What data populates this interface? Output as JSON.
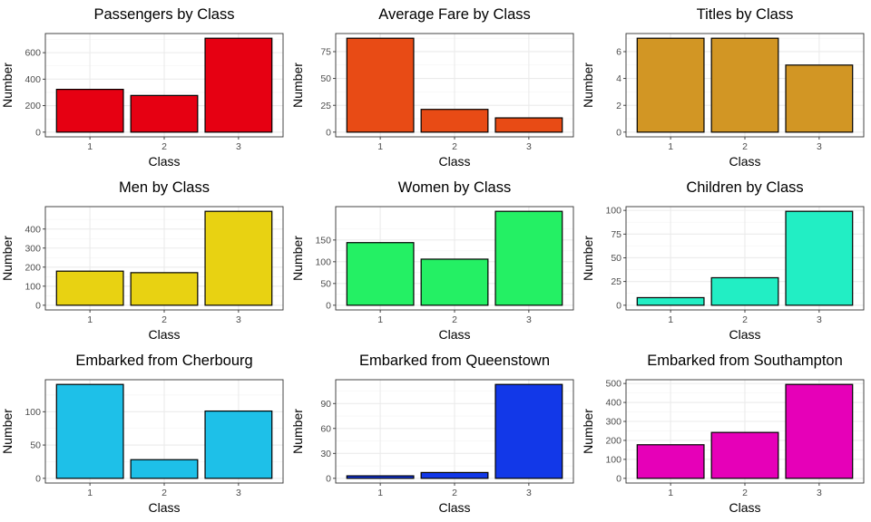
{
  "chart_data": [
    {
      "type": "bar",
      "title": "Passengers by Class",
      "xlabel": "Class",
      "ylabel": "Number",
      "categories": [
        "1",
        "2",
        "3"
      ],
      "values": [
        323,
        277,
        709
      ],
      "ylim": [
        -35.45,
        744.45
      ],
      "yticks": [
        0,
        200,
        400,
        600
      ],
      "color": "#E60012"
    },
    {
      "type": "bar",
      "title": "Average Fare by Class",
      "xlabel": "Class",
      "ylabel": "Number",
      "categories": [
        "1",
        "2",
        "3"
      ],
      "values": [
        87.5,
        21.2,
        13.3
      ],
      "ylim": [
        -4.375,
        91.875
      ],
      "yticks": [
        0,
        25,
        50,
        75
      ],
      "color": "#E84B15"
    },
    {
      "type": "bar",
      "title": "Titles by Class",
      "xlabel": "Class",
      "ylabel": "Number",
      "categories": [
        "1",
        "2",
        "3"
      ],
      "values": [
        7,
        7,
        5
      ],
      "ylim": [
        -0.35,
        7.35
      ],
      "yticks": [
        0,
        2,
        4,
        6
      ],
      "color": "#D29624"
    },
    {
      "type": "bar",
      "title": "Men by Class",
      "xlabel": "Class",
      "ylabel": "Number",
      "categories": [
        "1",
        "2",
        "3"
      ],
      "values": [
        179,
        171,
        493
      ],
      "ylim": [
        -24.65,
        517.65
      ],
      "yticks": [
        0,
        100,
        200,
        300,
        400
      ],
      "color": "#E8D212"
    },
    {
      "type": "bar",
      "title": "Women by Class",
      "xlabel": "Class",
      "ylabel": "Number",
      "categories": [
        "1",
        "2",
        "3"
      ],
      "values": [
        144,
        106,
        216
      ],
      "ylim": [
        -10.8,
        226.8
      ],
      "yticks": [
        0,
        50,
        100,
        150
      ],
      "color": "#24F064"
    },
    {
      "type": "bar",
      "title": "Children by Class",
      "xlabel": "Class",
      "ylabel": "Number",
      "categories": [
        "1",
        "2",
        "3"
      ],
      "values": [
        8,
        29,
        99
      ],
      "ylim": [
        -4.95,
        103.95
      ],
      "yticks": [
        0,
        25,
        50,
        75,
        100
      ],
      "color": "#22EEC4"
    },
    {
      "type": "bar",
      "title": "Embarked from Cherbourg",
      "xlabel": "Class",
      "ylabel": "Number",
      "categories": [
        "1",
        "2",
        "3"
      ],
      "values": [
        141,
        28,
        101
      ],
      "ylim": [
        -7.05,
        148.05
      ],
      "yticks": [
        0,
        50,
        100
      ],
      "color": "#1EC0E8"
    },
    {
      "type": "bar",
      "title": "Embarked from Queenstown",
      "xlabel": "Class",
      "ylabel": "Number",
      "categories": [
        "1",
        "2",
        "3"
      ],
      "values": [
        3,
        7,
        113
      ],
      "ylim": [
        -5.65,
        118.65
      ],
      "yticks": [
        0,
        30,
        60,
        90
      ],
      "color": "#1238E8"
    },
    {
      "type": "bar",
      "title": "Embarked from Southampton",
      "xlabel": "Class",
      "ylabel": "Number",
      "categories": [
        "1",
        "2",
        "3"
      ],
      "values": [
        177,
        242,
        495
      ],
      "ylim": [
        -24.75,
        519.75
      ],
      "yticks": [
        0,
        100,
        200,
        300,
        400,
        500
      ],
      "color": "#E600B8"
    }
  ]
}
